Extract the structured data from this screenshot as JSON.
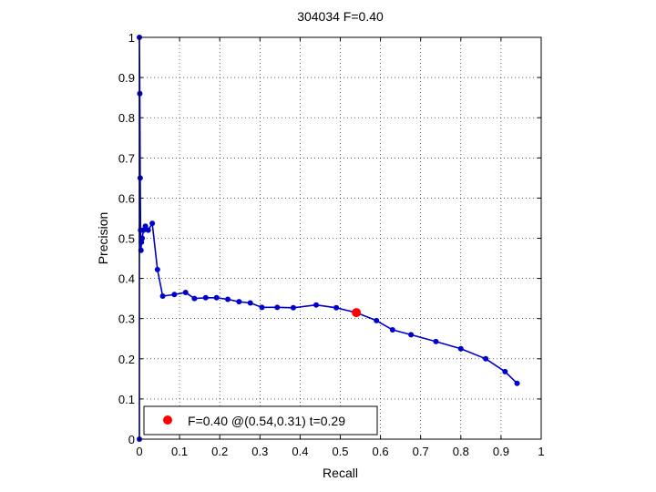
{
  "chart_data": {
    "type": "line",
    "title": "304034 F=0.40",
    "xlabel": "Recall",
    "ylabel": "Precision",
    "xlim": [
      0,
      1
    ],
    "ylim": [
      0,
      1
    ],
    "grid": true,
    "legend_position": "bottom-left",
    "x_ticks": [
      "0",
      "0.1",
      "0.2",
      "0.3",
      "0.4",
      "0.5",
      "0.6",
      "0.7",
      "0.8",
      "0.9",
      "1"
    ],
    "y_ticks": [
      "0",
      "0.1",
      "0.2",
      "0.3",
      "0.4",
      "0.5",
      "0.6",
      "0.7",
      "0.8",
      "0.9",
      "1"
    ],
    "series": [
      {
        "color": "#0000cc",
        "x": [
          0.0,
          0.0,
          0.001,
          0.002,
          0.003,
          0.004,
          0.005,
          0.007,
          0.01,
          0.015,
          0.022,
          0.032,
          0.045,
          0.058,
          0.087,
          0.115,
          0.137,
          0.165,
          0.192,
          0.22,
          0.248,
          0.276,
          0.305,
          0.343,
          0.383,
          0.44,
          0.49,
          0.54,
          0.59,
          0.63,
          0.676,
          0.738,
          0.8,
          0.862,
          0.91,
          0.94
        ],
        "y": [
          0.0,
          1.0,
          0.86,
          0.65,
          0.52,
          0.47,
          0.49,
          0.5,
          0.52,
          0.53,
          0.52,
          0.537,
          0.422,
          0.356,
          0.36,
          0.365,
          0.35,
          0.352,
          0.352,
          0.348,
          0.342,
          0.339,
          0.328,
          0.328,
          0.327,
          0.334,
          0.327,
          0.315,
          0.295,
          0.272,
          0.26,
          0.243,
          0.225,
          0.2,
          0.168,
          0.139
        ]
      }
    ],
    "highlight": {
      "color": "#ff0000",
      "x": 0.54,
      "y": 0.315
    },
    "legend": {
      "label": "F=0.40 @(0.54,0.31) t=0.29"
    }
  }
}
